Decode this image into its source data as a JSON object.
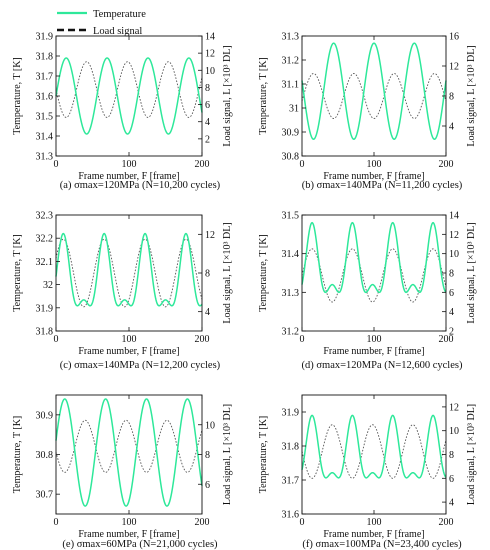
{
  "legend": [
    {
      "label": "Temperature",
      "color": "#2ee89a",
      "style": "solid"
    },
    {
      "label": "Load signal",
      "color": "#111111",
      "style": "dashed"
    }
  ],
  "chart_data": [
    {
      "type": "line",
      "caption": "(a) σmax=120MPa (N=10,200 cycles)",
      "xlabel": "Frame number, F [frame]",
      "ylabel_left": "Temperature, T [K]",
      "ylabel_right": "Load signal, L [×10³ DL]",
      "xlim": [
        0,
        200
      ],
      "xticks": [
        0,
        100,
        200
      ],
      "ylim_left": [
        31.3,
        31.9
      ],
      "yticks_left": [
        31.3,
        31.4,
        31.5,
        31.6,
        31.7,
        31.8,
        31.9
      ],
      "ylim_right": [
        0,
        14
      ],
      "yticks_right": [
        2,
        4,
        6,
        8,
        10,
        12,
        14
      ],
      "temperature": {
        "period": 56,
        "phase_peak": 14,
        "min": 31.41,
        "max": 31.79,
        "harmonic": 0
      },
      "load": {
        "period": 56,
        "phase_peak": 42,
        "min": 4.5,
        "max": 11.0
      }
    },
    {
      "type": "line",
      "caption": "(b) σmax=140MPa (N=11,200 cycles)",
      "xlabel": "Frame number, F [frame]",
      "ylabel_left": "Temperature, T [K]",
      "ylabel_right": "Load signal, L [×10³ DL]",
      "xlim": [
        0,
        200
      ],
      "xticks": [
        0,
        100,
        200
      ],
      "ylim_left": [
        30.8,
        31.3
      ],
      "yticks_left": [
        30.8,
        30.9,
        31,
        31.1,
        31.2,
        31.3
      ],
      "ylim_right": [
        0,
        16
      ],
      "yticks_right": [
        4,
        8,
        12,
        16
      ],
      "temperature": {
        "period": 56,
        "phase_peak": 44,
        "min": 30.87,
        "max": 31.27,
        "harmonic": 0
      },
      "load": {
        "period": 56,
        "phase_peak": 16,
        "min": 5.0,
        "max": 11.0
      }
    },
    {
      "type": "line",
      "caption": "(c) σmax=140MPa (N=12,200 cycles)",
      "xlabel": "Frame number, F [frame]",
      "ylabel_left": "Temperature, T [K]",
      "ylabel_right": "Load signal, L [×10³ DL]",
      "xlim": [
        0,
        200
      ],
      "xticks": [
        0,
        100,
        200
      ],
      "ylim_left": [
        31.8,
        32.3
      ],
      "yticks_left": [
        31.8,
        31.9,
        32,
        32.1,
        32.2,
        32.3
      ],
      "ylim_right": [
        2,
        14
      ],
      "yticks_right": [
        4,
        8,
        12
      ],
      "temperature": {
        "period": 56,
        "phase_peak": 10,
        "min": 31.83,
        "max": 32.22,
        "harmonic": 0.45
      },
      "load": {
        "period": 56,
        "phase_peak": 10,
        "min": 4.5,
        "max": 11.5
      }
    },
    {
      "type": "line",
      "caption": "(d) σmax=120MPa (N=12,600 cycles)",
      "xlabel": "Frame number, F [frame]",
      "ylabel_left": "Temperature, T [K]",
      "ylabel_right": "Load signal, L [×10³ DL]",
      "xlim": [
        0,
        200
      ],
      "xticks": [
        0,
        100,
        200
      ],
      "ylim_left": [
        31.2,
        31.5
      ],
      "yticks_left": [
        31.2,
        31.3,
        31.4,
        31.5
      ],
      "ylim_right": [
        2,
        14
      ],
      "yticks_right": [
        2,
        4,
        6,
        8,
        10,
        12,
        14
      ],
      "temperature": {
        "period": 56,
        "phase_peak": 14,
        "min": 31.26,
        "max": 31.48,
        "harmonic": 0.5
      },
      "load": {
        "period": 56,
        "phase_peak": 14,
        "min": 5.0,
        "max": 10.5
      }
    },
    {
      "type": "line",
      "caption": "(e) σmax=60MPa (N=21,000 cycles)",
      "xlabel": "Frame number, F [frame]",
      "ylabel_left": "Temperature, T [K]",
      "ylabel_right": "Load signal, L [×10³ DL]",
      "xlim": [
        0,
        200
      ],
      "xticks": [
        0,
        100,
        200
      ],
      "ylim_left": [
        30.65,
        30.95
      ],
      "yticks_left": [
        30.7,
        30.8,
        30.9
      ],
      "ylim_right": [
        4,
        12
      ],
      "yticks_right": [
        6,
        8,
        10
      ],
      "temperature": {
        "period": 56,
        "phase_peak": 12,
        "min": 30.67,
        "max": 30.94,
        "harmonic": 0
      },
      "load": {
        "period": 56,
        "phase_peak": 40,
        "min": 6.8,
        "max": 10.3
      }
    },
    {
      "type": "line",
      "caption": "(f) σmax=100MPa (N=23,400 cycles)",
      "xlabel": "Frame number, F [frame]",
      "ylabel_left": "Temperature, T [K]",
      "ylabel_right": "Load signal, L [×10³ DL]",
      "xlim": [
        0,
        200
      ],
      "xticks": [
        0,
        100,
        200
      ],
      "ylim_left": [
        31.6,
        31.95
      ],
      "yticks_left": [
        31.6,
        31.7,
        31.8,
        31.9
      ],
      "ylim_right": [
        3,
        13
      ],
      "yticks_right": [
        4,
        6,
        8,
        10,
        12
      ],
      "temperature": {
        "period": 56,
        "phase_peak": 14,
        "min": 31.66,
        "max": 31.89,
        "harmonic": 0.45
      },
      "load": {
        "period": 56,
        "phase_peak": 42,
        "min": 6.0,
        "max": 10.5
      }
    }
  ]
}
